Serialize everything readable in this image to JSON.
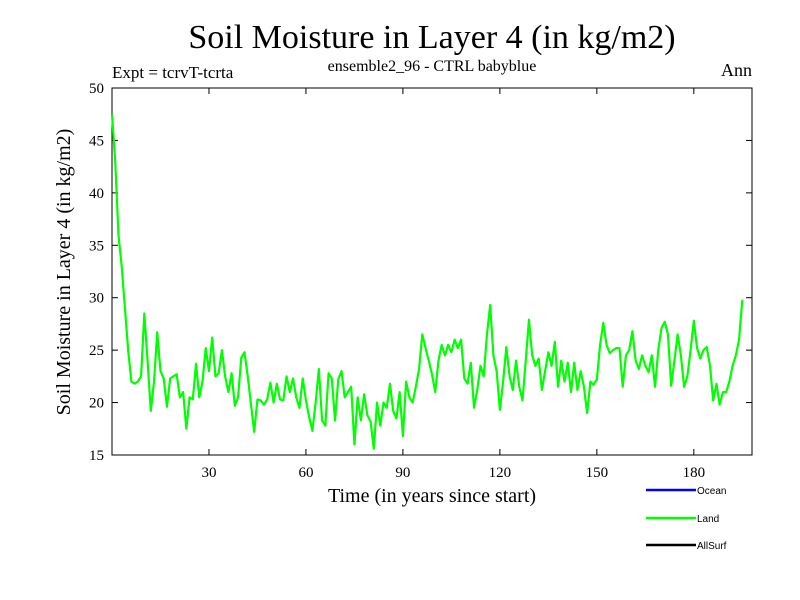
{
  "chart_data": {
    "type": "line",
    "title": "Soil Moisture in Layer 4 (in kg/m2)",
    "subtitle": "ensemble2_96 - CTRL babyblue",
    "left_annotation": "Expt = tcrvT-tcrta",
    "right_annotation": "Ann",
    "xlabel": "Time (in years since start)",
    "ylabel": "Soil Moisture in Layer 4 (in kg/m2)",
    "xlim": [
      0,
      198
    ],
    "ylim": [
      15,
      50
    ],
    "x_ticks": [
      30,
      60,
      90,
      120,
      150,
      180
    ],
    "y_ticks": [
      15,
      20,
      25,
      30,
      35,
      40,
      45,
      50
    ],
    "legend_position": "bottom-right",
    "colors": {
      "Ocean": "#0000ff",
      "Land": "#00ff00",
      "AllSurf": "#000000"
    },
    "series": [
      {
        "name": "Ocean",
        "values": []
      },
      {
        "name": "AllSurf",
        "values": []
      },
      {
        "name": "Land",
        "x_start": 0,
        "x_step": 1,
        "values": [
          47.5,
          43,
          36,
          33,
          29,
          25,
          22,
          21.8,
          22,
          22.5,
          28.5,
          24,
          19.2,
          22,
          26.7,
          23,
          22.3,
          19.6,
          22.3,
          22.5,
          22.7,
          20.5,
          21,
          17.5,
          20.5,
          20.3,
          23.7,
          20.5,
          22,
          25.2,
          23,
          26.2,
          22.5,
          22.8,
          25,
          22.5,
          21,
          22.8,
          19.7,
          20.5,
          24.3,
          24.8,
          22.5,
          19.8,
          17.2,
          20.3,
          20.2,
          19.8,
          20.3,
          21.9,
          20,
          21.8,
          20.3,
          20.2,
          22.5,
          21,
          22.3,
          20.5,
          19.5,
          22.3,
          20.2,
          18.6,
          17.3,
          20,
          23.2,
          18.3,
          17.8,
          22.8,
          22.3,
          18.3,
          22.2,
          23,
          20.5,
          21,
          21.5,
          16,
          20.5,
          18.3,
          20.8,
          18.8,
          18.2,
          15.6,
          20,
          17.8,
          20,
          19.5,
          21.8,
          19.2,
          18.5,
          21,
          16.8,
          22,
          20.5,
          20,
          21.5,
          23.2,
          26.5,
          25.2,
          24,
          22.7,
          21,
          24,
          25.5,
          24.5,
          25.5,
          24.8,
          26,
          25.2,
          26,
          22.3,
          21.8,
          23.8,
          19.5,
          21.2,
          23.5,
          22.5,
          26.5,
          29.3,
          24.5,
          23,
          19.3,
          22,
          25.3,
          22.5,
          21.2,
          24,
          21.5,
          20.2,
          24,
          27.9,
          24.5,
          23.5,
          24.2,
          21.2,
          23,
          24.8,
          23.5,
          25.8,
          21.5,
          24,
          22,
          23.8,
          21,
          23.8,
          21.2,
          23,
          21.5,
          19,
          22,
          21.7,
          22.2,
          25.5,
          27.6,
          25.5,
          24.7,
          25,
          25.2,
          25.2,
          21.5,
          24.5,
          25,
          26.8,
          24,
          23.2,
          24.5,
          23.5,
          22.9,
          24.5,
          21.5,
          25,
          27.1,
          27.7,
          26.5,
          21.6,
          24,
          26.5,
          24.5,
          21.5,
          22.5,
          25,
          27.8,
          25.2,
          24.2,
          25,
          25.3,
          23.5,
          20.2,
          21.8,
          19.8,
          21,
          21,
          22,
          23.5,
          24.5,
          26,
          29.8
        ]
      }
    ]
  }
}
